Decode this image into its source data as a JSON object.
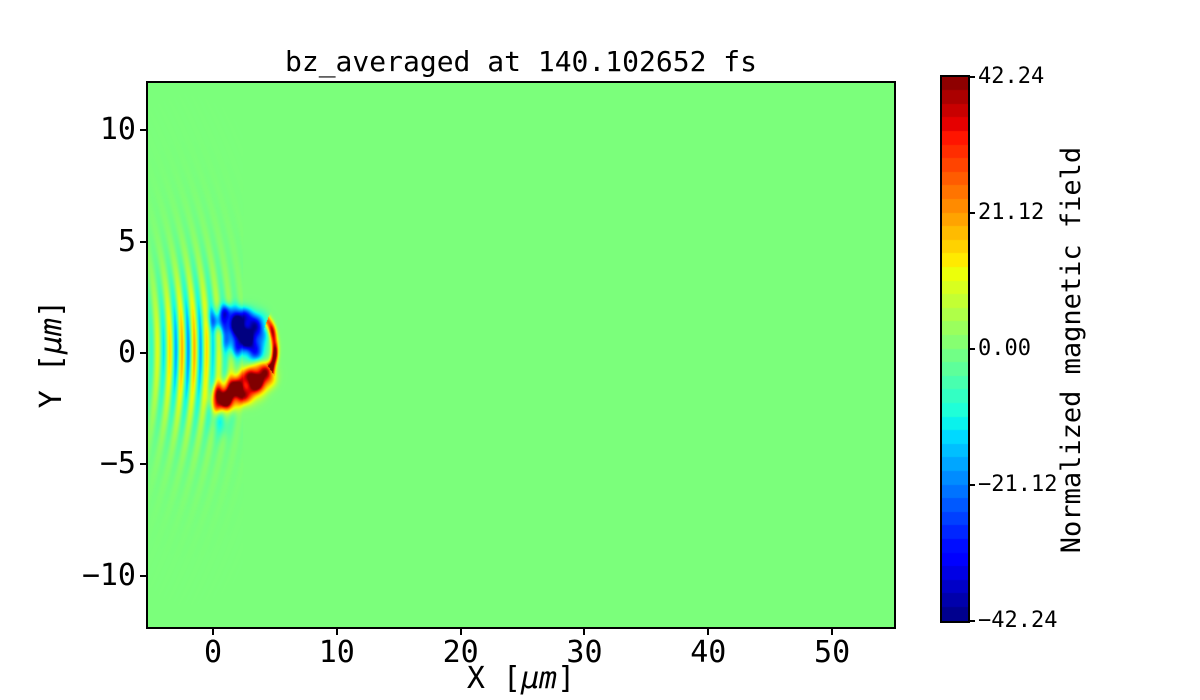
{
  "figure": {
    "background": "#ffffff"
  },
  "chart_data": {
    "type": "heatmap",
    "title": "bz_averaged at 140.102652 fs",
    "xlabel": {
      "pre": "X [",
      "mu": "μm",
      "post": "]"
    },
    "ylabel": {
      "pre": "Y [",
      "mu": "μm",
      "post": "]"
    },
    "xlim": [
      -5.25,
      55.0
    ],
    "ylim": [
      -12.3,
      12.12
    ],
    "xticks": {
      "values": [
        0,
        10,
        20,
        30,
        40,
        50
      ],
      "labels": [
        "0",
        "10",
        "20",
        "30",
        "40",
        "50"
      ]
    },
    "yticks": {
      "values": [
        10,
        5,
        0,
        -5,
        -10
      ],
      "labels": [
        "10",
        "5",
        "0",
        "−5",
        "−10"
      ]
    },
    "grid": false,
    "legend": "none",
    "colormap": "jet",
    "clim": [
      -42.24,
      42.24
    ],
    "colorbar": {
      "label": "Normalized magnetic field",
      "levels": 40,
      "tick_values": [
        42.24,
        21.12,
        0,
        -21.12,
        -42.24
      ],
      "tick_labels": [
        "42.24",
        "21.12",
        "0.00",
        "−21.12",
        "−42.24"
      ],
      "top_color": "#800000",
      "bottom_color": "#000080"
    },
    "background_value": 0,
    "background_color": "#7bff7b",
    "field": {
      "background_value": 0,
      "wave_packet": {
        "x_center": -2.0,
        "y_center": 0.15,
        "sigma_x": 2.1,
        "sigma_y": 2.0,
        "outer_sigma_x": 2.6,
        "outer_sigma_y": 3.4,
        "amplitude": 15,
        "outer_amplitude": 4,
        "wavelength": 1.0,
        "phase_x0": -1.75,
        "curvature": 0.04,
        "x_range": [
          -5.25,
          2.4
        ]
      },
      "blobs": [
        {
          "x": 1.3,
          "y": 1.55,
          "sx": 1.0,
          "sy": 0.42,
          "v": -30,
          "p": 1.5
        },
        {
          "x": 2.9,
          "y": 1.1,
          "sx": 1.0,
          "sy": 0.55,
          "v": -34,
          "p": 1.5
        },
        {
          "x": 2.2,
          "y": 0.5,
          "sx": 0.9,
          "sy": 0.45,
          "v": -26,
          "p": 1.3
        },
        {
          "x": 3.5,
          "y": 0.0,
          "sx": 0.55,
          "sy": 0.4,
          "v": -20,
          "p": 1.2
        },
        {
          "x": 1.2,
          "y": -1.9,
          "sx": 0.85,
          "sy": 0.45,
          "v": 34,
          "p": 1.5
        },
        {
          "x": 2.6,
          "y": -1.5,
          "sx": 0.95,
          "sy": 0.5,
          "v": 36,
          "p": 1.5
        },
        {
          "x": 3.9,
          "y": -1.0,
          "sx": 0.75,
          "sy": 0.45,
          "v": 38,
          "p": 1.5
        },
        {
          "x": 0.6,
          "y": -2.2,
          "sx": 0.5,
          "sy": 0.35,
          "v": 26,
          "p": 1.2
        },
        {
          "x": 0.6,
          "y": -3.1,
          "sx": 0.55,
          "sy": 0.45,
          "v": -8,
          "p": 1.0
        }
      ],
      "arc": {
        "cx": 3.5,
        "cy": 0.2,
        "radius": 1.5,
        "angle_start": -40,
        "angle_end": 55,
        "width": 0.27,
        "v": 42
      },
      "texture": {
        "amplitude": 0.22,
        "fx": 3.8,
        "fy": 4.6,
        "phase_x": 0.8,
        "phase_y": 0.4
      }
    }
  }
}
